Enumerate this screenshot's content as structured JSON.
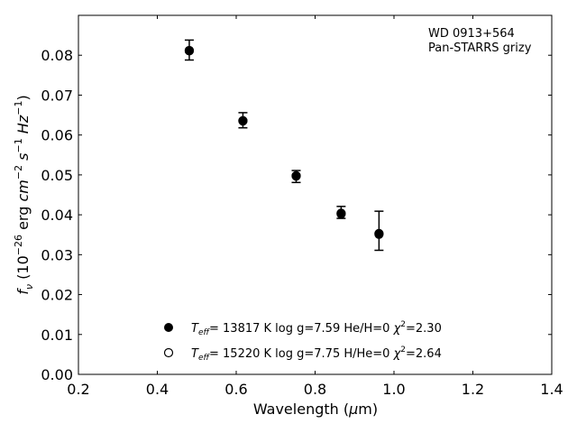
{
  "chart_data": {
    "type": "scatter",
    "annotation_lines": [
      "WD 0913+564",
      "Pan-STARRS grizy"
    ],
    "xlabel": {
      "text": "Wavelength (",
      "mu": "μ",
      "unit": "m)"
    },
    "ylabel": {
      "f": "f",
      "nu": "ν",
      "open": " (10",
      "exp1": "−26",
      "erg": " erg ",
      "cm": "cm",
      "exp2": "−2",
      "s": " s",
      "exp3": "−1",
      "Hz": " Hz",
      "exp4": "−1",
      "close": ")"
    },
    "xlim": [
      0.2,
      1.4
    ],
    "ylim": [
      0.0,
      0.09
    ],
    "xticks": [
      "0.2",
      "0.4",
      "0.6",
      "0.8",
      "1.0",
      "1.2",
      "1.4"
    ],
    "yticks": [
      "0.00",
      "0.01",
      "0.02",
      "0.03",
      "0.04",
      "0.05",
      "0.06",
      "0.07",
      "0.08"
    ],
    "observed": {
      "x": [
        0.481,
        0.617,
        0.752,
        0.866,
        0.962
      ],
      "y": [
        0.0813,
        0.0637,
        0.0496,
        0.0406,
        0.036
      ],
      "yerr": [
        0.0025,
        0.0019,
        0.0015,
        0.0015,
        0.0049
      ]
    },
    "series": [
      {
        "name": "T_eff= 13817 K  log g=7.59  He/H=0  χ²=2.30",
        "label_parts": {
          "T": "T",
          "eff": "eff",
          "rest": "= 13817 K  log g=7.59  He/H=0  ",
          "chi": "χ",
          "sq": "2",
          "val": "=2.30"
        },
        "marker": "filled",
        "x": [
          0.481,
          0.617,
          0.752,
          0.866,
          0.962
        ],
        "y": [
          0.0811,
          0.0635,
          0.0497,
          0.0402,
          0.0351
        ]
      },
      {
        "name": "T_eff= 15220 K  log g=7.75  H/He=0  χ²=2.64",
        "label_parts": {
          "T": "T",
          "eff": "eff",
          "rest": "= 15220 K  log g=7.75  H/He=0  ",
          "chi": "χ",
          "sq": "2",
          "val": "=2.64"
        },
        "marker": "open",
        "x": [
          0.481,
          0.617,
          0.752,
          0.866,
          0.962
        ],
        "y": [
          0.0812,
          0.0636,
          0.0498,
          0.0404,
          0.0353
        ]
      }
    ],
    "legend_position": "lower-center",
    "grid": false,
    "colors": {
      "marker": "#000000",
      "axis": "#000000"
    }
  }
}
